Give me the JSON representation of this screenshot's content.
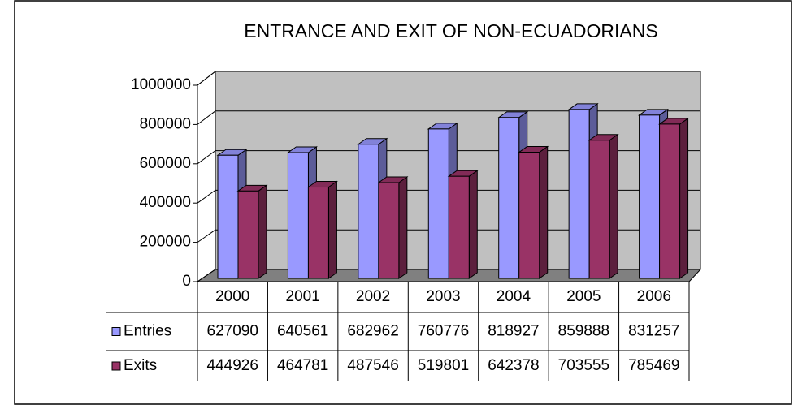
{
  "chart_data": {
    "type": "bar3d",
    "title": "ENTRANCE AND EXIT OF NON-ECUADORIANS",
    "categories": [
      "2000",
      "2001",
      "2002",
      "2003",
      "2004",
      "2005",
      "2006"
    ],
    "series": [
      {
        "name": "Entries",
        "color": "#9999ff",
        "values": [
          627090,
          640561,
          682962,
          760776,
          818927,
          859888,
          831257
        ]
      },
      {
        "name": "Exits",
        "color": "#993366",
        "values": [
          444926,
          464781,
          487546,
          519801,
          642378,
          703555,
          785469
        ]
      }
    ],
    "ylim": [
      0,
      1000000
    ],
    "yticks": [
      0,
      200000,
      400000,
      600000,
      800000,
      1000000
    ],
    "grid": true
  }
}
